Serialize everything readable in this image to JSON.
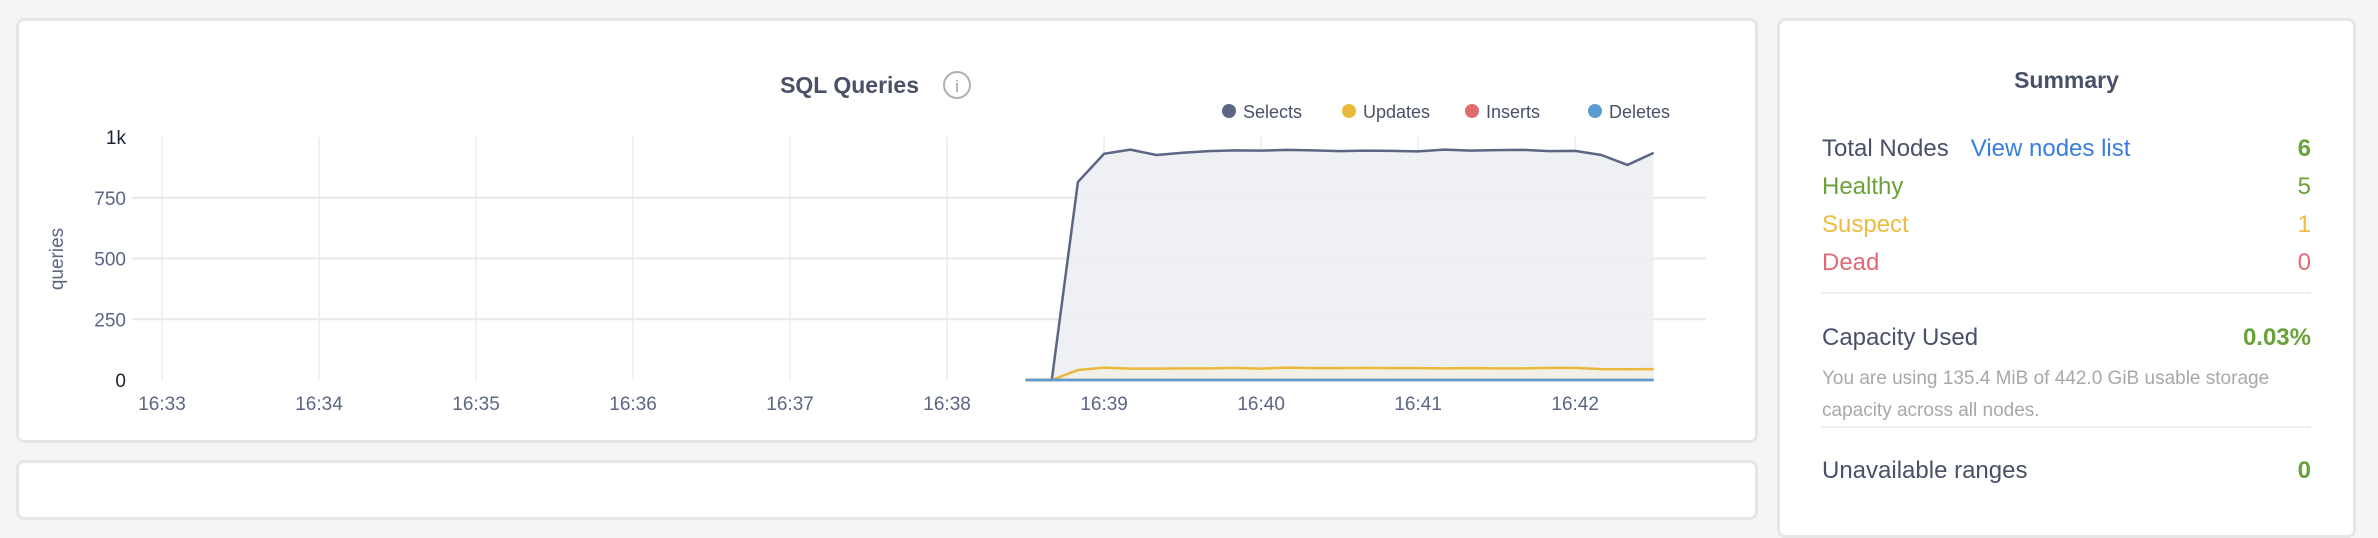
{
  "chart_data": {
    "type": "area",
    "title": "SQL Queries",
    "ylabel": "queries",
    "ylim": [
      0,
      1000
    ],
    "yticks": [
      "0",
      "250",
      "500",
      "750",
      "1k"
    ],
    "ytick_values": [
      0,
      250,
      500,
      750,
      1000
    ],
    "xlim": [
      "16:33:00",
      "16:42:50"
    ],
    "xticks": [
      "16:33",
      "16:34",
      "16:35",
      "16:36",
      "16:37",
      "16:38",
      "16:39",
      "16:40",
      "16:41",
      "16:42"
    ],
    "grid": true,
    "legend_position": "top-right",
    "x": [
      "16:38:30",
      "16:38:40",
      "16:38:50",
      "16:39:00",
      "16:39:10",
      "16:39:20",
      "16:39:30",
      "16:39:40",
      "16:39:50",
      "16:40:00",
      "16:40:10",
      "16:40:20",
      "16:40:30",
      "16:40:40",
      "16:40:50",
      "16:41:00",
      "16:41:10",
      "16:41:20",
      "16:41:30",
      "16:41:40",
      "16:41:50",
      "16:42:00",
      "16:42:10",
      "16:42:20",
      "16:42:30"
    ],
    "series": [
      {
        "name": "Selects",
        "color": "#5c6684",
        "fill": "#eceef2",
        "values": [
          0,
          0,
          815,
          931,
          948,
          926,
          935,
          942,
          945,
          944,
          947,
          945,
          942,
          944,
          943,
          941,
          948,
          944,
          946,
          947,
          942,
          943,
          926,
          885,
          935
        ]
      },
      {
        "name": "Updates",
        "color": "#e9b93b",
        "fill": "#f3efe6",
        "values": [
          0,
          0,
          41,
          51,
          47,
          47,
          48,
          48,
          50,
          47,
          51,
          49,
          49,
          50,
          49,
          49,
          48,
          49,
          48,
          48,
          50,
          50,
          45,
          44,
          45
        ]
      },
      {
        "name": "Inserts",
        "color": "#e06a6c",
        "values": [
          0,
          0,
          0,
          0,
          0,
          0,
          0,
          0,
          0,
          0,
          0,
          0,
          0,
          0,
          0,
          0,
          0,
          0,
          0,
          0,
          0,
          0,
          0,
          0,
          0
        ]
      },
      {
        "name": "Deletes",
        "color": "#5a9bd2",
        "values": [
          0,
          0,
          0,
          0,
          0,
          0,
          0,
          0,
          0,
          0,
          0,
          0,
          0,
          0,
          0,
          0,
          0,
          0,
          0,
          0,
          0,
          0,
          0,
          0,
          0
        ]
      }
    ]
  },
  "info_icon": "info-circle-icon",
  "summary": {
    "title": "Summary",
    "total_nodes_label": "Total Nodes",
    "view_nodes_link": "View nodes list",
    "total_nodes_value": "6",
    "healthy_label": "Healthy",
    "healthy_value": "5",
    "suspect_label": "Suspect",
    "suspect_value": "1",
    "dead_label": "Dead",
    "dead_value": "0",
    "capacity_label": "Capacity Used",
    "capacity_value": "0.03%",
    "capacity_description": "You are using 135.4 MiB of 442.0 GiB usable storage capacity across all nodes.",
    "unavailable_label": "Unavailable ranges",
    "unavailable_value": "0",
    "colors": {
      "healthy": "#6aa23a",
      "suspect": "#ecbb3f",
      "dead": "#e06a77",
      "link": "#3a7de1"
    }
  }
}
